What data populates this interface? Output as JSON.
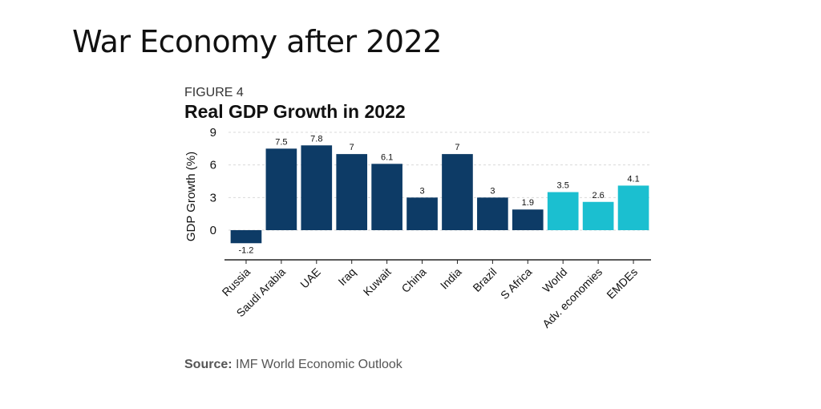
{
  "slide": {
    "title": "War Economy after 2022"
  },
  "figure_label": "FIGURE 4",
  "source": {
    "label": "Source:",
    "text": "IMF World  Economic  Outlook"
  },
  "chart_data": {
    "type": "bar",
    "title": "Real GDP Growth in 2022",
    "xlabel": "",
    "ylabel": "GDP Growth (%)",
    "ylim": [
      -2.5,
      9
    ],
    "yticks": [
      0,
      3,
      6,
      9
    ],
    "grid": "horizontal dashed",
    "categories": [
      "Russia",
      "Saudi Arabia",
      "UAE",
      "Iraq",
      "Kuwait",
      "China",
      "India",
      "Brazil",
      "S Africa",
      "World",
      "Adv. economies",
      "EMDEs"
    ],
    "values": [
      -1.2,
      7.5,
      7.8,
      7,
      6.1,
      3,
      7,
      3,
      1.9,
      3.5,
      2.6,
      4.1
    ],
    "data_labels": [
      "-1.2",
      "7.5",
      "7.8",
      "7",
      "6.1",
      "3",
      "7",
      "3",
      "1.9",
      "3.5",
      "2.6",
      "4.1"
    ],
    "colors": [
      "#0d3b66",
      "#0d3b66",
      "#0d3b66",
      "#0d3b66",
      "#0d3b66",
      "#0d3b66",
      "#0d3b66",
      "#0d3b66",
      "#0d3b66",
      "#1bbfd0",
      "#1bbfd0",
      "#1bbfd0"
    ]
  }
}
